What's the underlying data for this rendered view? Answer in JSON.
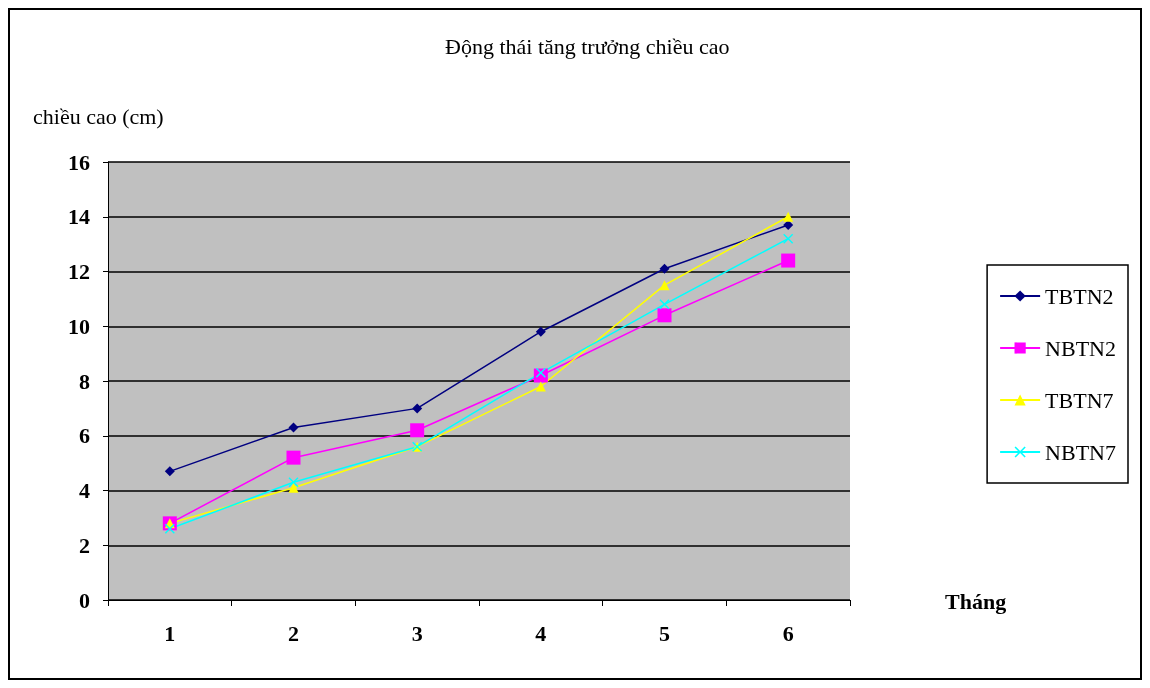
{
  "chart_data": {
    "type": "line",
    "title": "Động thái tăng trưởng chiều cao",
    "ylabel": "chiều cao (cm)",
    "xlabel": "Tháng",
    "categories": [
      "1",
      "2",
      "3",
      "4",
      "5",
      "6"
    ],
    "series": [
      {
        "name": "TBTN2",
        "color": "#000080",
        "marker": "diamond",
        "values": [
          4.7,
          6.3,
          7.0,
          9.8,
          12.1,
          13.7
        ]
      },
      {
        "name": "NBTN2",
        "color": "#ff00ff",
        "marker": "square",
        "values": [
          2.8,
          5.2,
          6.2,
          8.2,
          10.4,
          12.4
        ]
      },
      {
        "name": "TBTN7",
        "color": "#ffff00",
        "marker": "triangle",
        "values": [
          2.8,
          4.1,
          5.6,
          7.8,
          11.5,
          14.0
        ]
      },
      {
        "name": "NBTN7",
        "color": "#00ffff",
        "marker": "cross",
        "values": [
          2.6,
          4.3,
          5.6,
          8.3,
          10.8,
          13.2
        ]
      }
    ],
    "ylim": [
      0,
      16
    ],
    "yticks": [
      0,
      2,
      4,
      6,
      8,
      10,
      12,
      14,
      16
    ],
    "grid": "y",
    "legend": "right"
  }
}
